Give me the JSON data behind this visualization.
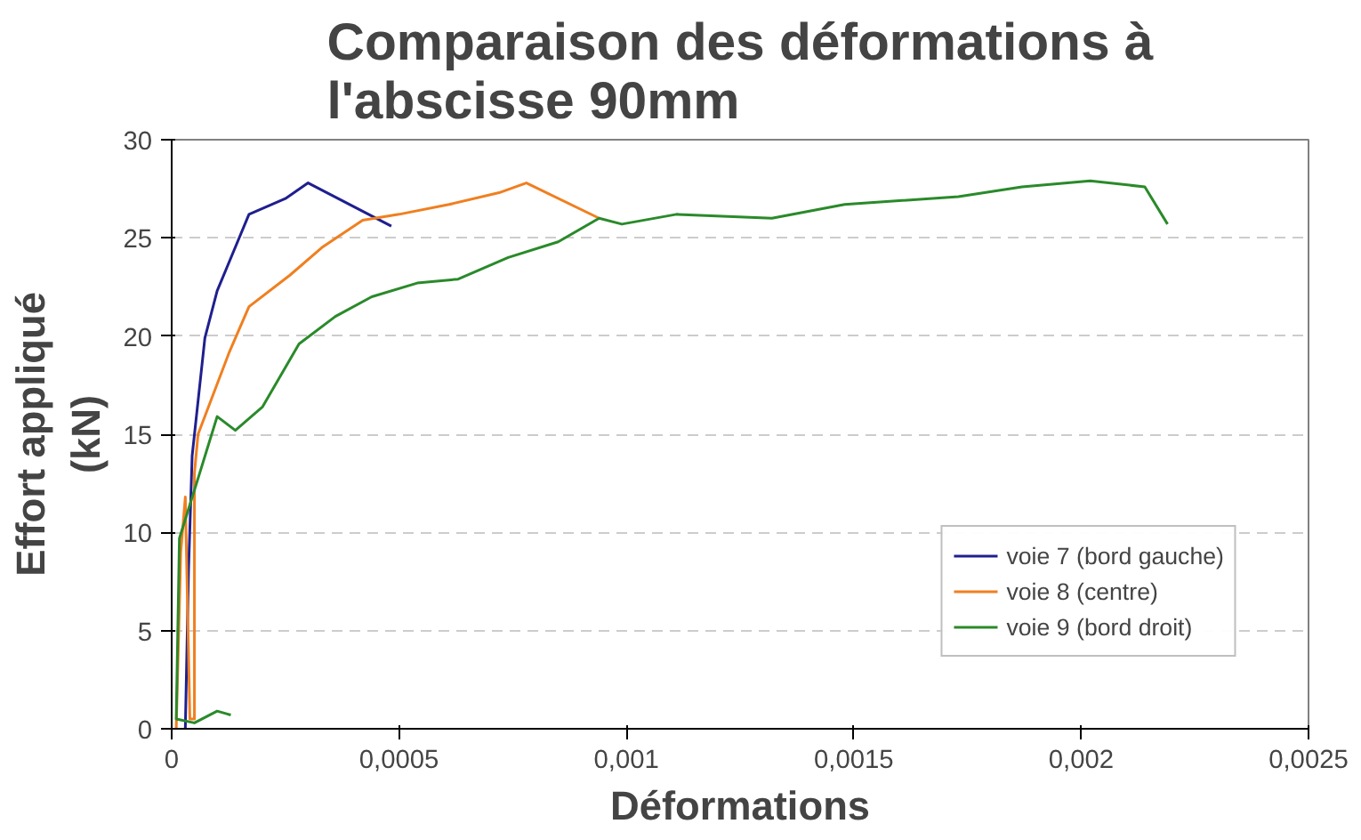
{
  "chart_data": {
    "type": "line",
    "title": "Comparaison des déformations à\nl'abscisse 90mm",
    "xlabel": "Déformations",
    "ylabel": "Effort appliqué\n(kN)",
    "xlim": [
      0,
      0.0025
    ],
    "ylim": [
      0,
      30
    ],
    "xticks": [
      0,
      {
        "value": 0.0005,
        "label": "0,0005"
      },
      {
        "value": 0.001,
        "label": "0,001"
      },
      {
        "value": 0.0015,
        "label": "0,0015"
      },
      {
        "value": 0.002,
        "label": "0,002"
      },
      {
        "value": 0.0025,
        "label": "0,0025"
      }
    ],
    "yticks": [
      0,
      5,
      10,
      15,
      20,
      25,
      30
    ],
    "grid": "y",
    "legend": "bottom right",
    "line_style": "solid",
    "series": [
      {
        "name": "voie 7 (bord gauche)",
        "color": "#1f1f8f",
        "x": [
          3e-05,
          3.7e-05,
          4.5e-05,
          7.3e-05,
          0.0001,
          0.00017,
          0.00025,
          0.0003,
          0.000483
        ],
        "values": [
          0,
          8,
          13.9,
          19.9,
          22.3,
          26.2,
          27.0,
          27.8,
          25.6
        ]
      },
      {
        "name": "voie 8 (centre)",
        "color": "#f07f20",
        "x": [
          1e-05,
          2e-05,
          3e-05,
          4e-05,
          5e-05,
          5e-05,
          5.8e-05,
          0.000127,
          0.00017,
          0.00026,
          0.00033,
          0.00042,
          0.0005,
          0.00061,
          0.00072,
          0.00078,
          0.00094
        ],
        "values": [
          0,
          9,
          11.8,
          0.5,
          0.5,
          13,
          15,
          19.2,
          21.5,
          23.1,
          24.5,
          25.9,
          26.2,
          26.7,
          27.3,
          27.8,
          26.0
        ]
      },
      {
        "name": "voie 9 (bord droit)",
        "color": "#2a8a2a",
        "x": [
          0.00013,
          0.0001,
          5e-05,
          1e-05,
          1.7e-05,
          6e-05,
          0.0001,
          0.00014,
          0.0002,
          0.00028,
          0.00036,
          0.00044,
          0.00054,
          0.00063,
          0.00074,
          0.00085,
          0.00094,
          0.00099,
          0.00111,
          0.00132,
          0.00148,
          0.00173,
          0.00187,
          0.00202,
          0.00214,
          0.00219
        ],
        "values": [
          0.7,
          0.9,
          0.3,
          0.5,
          9.7,
          12.9,
          15.9,
          15.2,
          16.4,
          19.6,
          21.0,
          22.0,
          22.7,
          22.9,
          24.0,
          24.8,
          26.0,
          25.7,
          26.2,
          26.0,
          26.7,
          27.1,
          27.6,
          27.9,
          27.6,
          25.7
        ]
      }
    ]
  }
}
